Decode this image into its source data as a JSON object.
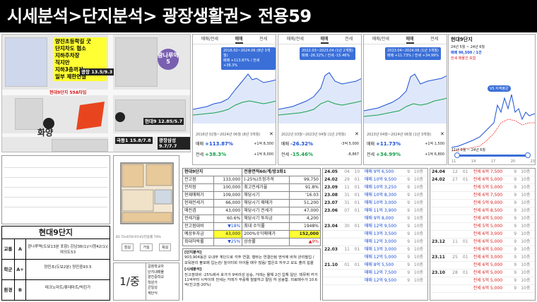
{
  "header": {
    "title": "시세분석>단지분석> 광장생활권> 전용59"
  },
  "map": {
    "note_lines": [
      "양진초등학길 굿",
      "단지차도 협소",
      "지하주차장",
      "직지만",
      "지하3층까지",
      "일부 제한연결"
    ],
    "red_label": "현대9단지 59A타입",
    "station": "광나루역 5",
    "school": "양진초",
    "school_label": "화양",
    "labels": [
      {
        "name": "광장",
        "price": "13.5/9.3"
      },
      {
        "name": "현대9",
        "price": "12.85/5.7"
      },
      {
        "name": "극동1",
        "price": "15.8/7.8"
      },
      {
        "name": "광장삼성",
        "price": "9.7/7.7"
      }
    ]
  },
  "charts": [
    {
      "tabs": [
        "매매/전세",
        "매매",
        "전세"
      ],
      "tip": [
        "2016.02~2024.06 (8년 3개월)",
        "매매 +113.87% / 전세 +38.3%"
      ],
      "period": "2016년 02월~2024년 06월 (8년 3개월)",
      "sale_label": "매매",
      "sale_pct": "+113.87%",
      "sale_amt": "+1억 8,300",
      "rent_label": "전세",
      "rent_pct": "+38.3%",
      "rent_amt": "+1억 8,000"
    },
    {
      "tabs": [
        "매매/전세",
        "매매",
        "전세"
      ],
      "tip": [
        "2022.03~2023.04 (1년 2개월)",
        "매매 -26.32% / 전세 -15.46%"
      ],
      "period": "2022년 03월~2023년 04월 (1년 2개월)",
      "sale_label": "매매",
      "sale_pct": "-26.32%",
      "sale_amt": "-3억 5,000",
      "rent_label": "전세",
      "rent_pct": "-15.46%",
      "rent_amt": "-8,867"
    },
    {
      "tabs": [
        "매매/전세",
        "매매",
        "전세"
      ],
      "tip": [
        "2023.04~2024.06 (1년 3개월)",
        "매매 +11.73% / 전세 +34.99%"
      ],
      "period": "2023년 04월~2024년 06월 (1년 3개월)",
      "sale_label": "매매",
      "sale_pct": "+11.73%",
      "sale_amt": "+1억 1,500",
      "rent_label": "전세",
      "rent_pct": "+34.99%",
      "rent_amt": "+1억 6,800"
    }
  ],
  "big_chart": {
    "title": "현대9단지",
    "sub": [
      "24년 5월 ~ 24년 6월",
      "매매 96,500 / 1건",
      "전세 매물건 포함"
    ],
    "badge": "VS 지역평균",
    "range": "11년 5월 ~ 24년 6월",
    "years": [
      "11",
      "14",
      "17",
      "20",
      "23"
    ]
  },
  "summary": {
    "name": "현대9단지",
    "rows": [
      {
        "cat": "교통",
        "grade": "A",
        "desc": "광나루역(도보13분 포함) 강남38(1)/시청42(1)/여의도53"
      },
      {
        "cat": "학군",
        "grade": "A+",
        "desc": "양진초(도보2분) 양진중93.5"
      },
      {
        "cat": "환경",
        "grade": "B",
        "desc": "테크노마트/롯데마트/빅린가"
      }
    ]
  },
  "floor": {
    "size": "1/중",
    "notes": [
      "갈참학교차",
      "단지내매물",
      "양진중학교",
      "학원가",
      "균일성",
      "계단식"
    ],
    "caption": "81.72㎡(59.97㎡)/전용률 74%",
    "rooms": [
      "침실",
      "거실",
      "욕실"
    ]
  },
  "info": {
    "header": [
      "현대9단지",
      "전용면적60/계/방3화1"
    ],
    "rows": [
      [
        "전고점",
        "133,000",
        "(-25%)조정가격",
        "99,750"
      ],
      [
        "전저점",
        "100,000",
        "최고전세가율",
        "91.8%"
      ],
      [
        "현재매매가",
        "109,000",
        "해당시기",
        "'16.03"
      ],
      [
        "현재전세가",
        "66,000",
        "해당시기 매매가",
        "51,200"
      ],
      [
        "매전갭",
        "43,000",
        "해당시기 전세가",
        "47,000"
      ],
      [
        "전세가율",
        "60.6%",
        "해당시기 투자금",
        "4,200"
      ],
      [
        "전고점대비",
        "▼18%",
        "최대 수익률",
        "1948%"
      ],
      [
        "예상투자금",
        "43,000",
        "200%수익매매가",
        "152,000"
      ],
      [
        "최대하락률",
        "▼25%",
        "상승률",
        "▲9%"
      ]
    ],
    "notes_title1": "[단지분석]",
    "notes1": "903,904동은 오내부 계단으로 각주 연결, 행바는 연결안됨 엔식에 바쳐 관리필입 / 모둬분리 불포매 입는관/ 놀이터회 아이들 매우 많음/ 법은초 자꾸고 모도 출리 힘을",
    "notes_title2": "[시세분석]",
    "notes2": "전고점대비 -25%에서 호가가 9억라성 상승, 거래는 몰해 2건 입해 일단. 테뮤휘 커거 11억부터 시작이며 전세는 카레가 무중해 월말하고 절임 하 삼송함. 외료매수가 10.6억(진고점-20%)"
  },
  "trades_a": [
    [
      "24.05",
      "04",
      "10",
      "매매 9억 6,500",
      "9",
      "10층"
    ],
    [
      "24.02",
      "29",
      "01",
      "매매 10억 9,500",
      "9",
      "10층"
    ],
    [
      "23.09",
      "11",
      "01",
      "매매 10억 3,250",
      "9",
      "10층"
    ],
    [
      "23.08",
      "31",
      "01",
      "매매 10억 8,300",
      "9",
      "10층"
    ],
    [
      "23.07",
      "31",
      "01",
      "매매 10억 3,000",
      "9",
      "10층"
    ],
    [
      "23.06",
      "07",
      "01",
      "매매 11억 3,900",
      "9",
      "10층"
    ],
    [
      "",
      "",
      "",
      "매매 9억 8,000",
      "9",
      "10층"
    ],
    [
      "23.04",
      "30",
      "01",
      "매매 12억 9,500",
      "9",
      "10층"
    ],
    [
      "",
      "",
      "",
      "매매 13억 3,500",
      "9",
      "10층"
    ],
    [
      "",
      "",
      "",
      "매매 12억 3,000",
      "9",
      "10층"
    ],
    [
      "22.03",
      "11",
      "01",
      "매매 13억 3,000",
      "9",
      "10층"
    ],
    [
      "",
      "",
      "",
      "매매 12억 5,000",
      "9",
      "10층"
    ],
    [
      "21.10",
      "01",
      "01",
      "매매 8억 5,500",
      "9",
      "10층"
    ],
    [
      "",
      "",
      "",
      "매매 12억 7,500",
      "9",
      "10층"
    ],
    [
      "",
      "",
      "",
      "매매 12억 9,500",
      "9",
      "10층"
    ]
  ],
  "trades_b": [
    [
      "24.04",
      "12",
      "01",
      "전세 6억 7,500",
      "9",
      "10층"
    ],
    [
      "24.02",
      "27",
      "01",
      "전세 6억 5,000",
      "9",
      "10층"
    ],
    [
      "",
      "",
      "",
      "전세 5억 5,000",
      "9",
      "10층"
    ],
    [
      "",
      "",
      "",
      "전세 6억 7,500",
      "9",
      "10층"
    ],
    [
      "",
      "",
      "",
      "전세 5억 9,000",
      "9",
      "10층"
    ],
    [
      "",
      "",
      "",
      "전세 6억 8,500",
      "9",
      "10층"
    ],
    [
      "",
      "",
      "",
      "전세 4억 5,000",
      "9",
      "10층"
    ],
    [
      "",
      "",
      "",
      "전세 5억 5,000",
      "9",
      "10층"
    ],
    [
      "",
      "",
      "",
      "전세 6억 3,000",
      "9",
      "10층"
    ],
    [
      "23.12",
      "11",
      "01",
      "전세 6억 5,000",
      "9",
      "10층"
    ],
    [
      "",
      "",
      "",
      "전세 6억 5,000",
      "9",
      "10층"
    ],
    [
      "23.11",
      "25",
      "01",
      "전세 6억 3,000",
      "9",
      "10층"
    ],
    [
      "",
      "",
      "",
      "전세 6억 5,000",
      "9",
      "10층"
    ],
    [
      "23.10",
      "28",
      "01",
      "전세 6억 5,000",
      "9",
      "10층"
    ],
    [
      "",
      "",
      "",
      "전세 5억 5,000",
      "9",
      "10층"
    ],
    [
      "",
      "",
      "",
      "전세 6억 5,000",
      "9",
      "10층"
    ]
  ],
  "colors": {
    "sale_line": "#1c4fd8",
    "rent_line": "#16a04a",
    "fill": "#b9cff5",
    "highlight": "#ffff33",
    "red": "#d92020"
  }
}
